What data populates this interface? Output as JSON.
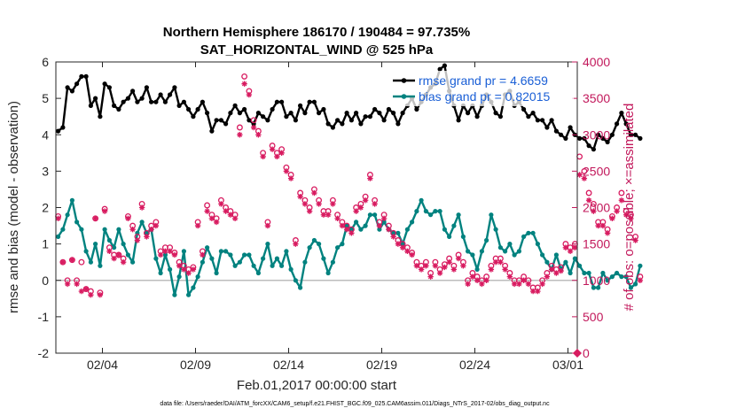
{
  "chart_data": {
    "type": "line",
    "title": "Northern Hemisphere 186170 / 190484 = 97.735%",
    "subtitle": "SAT_HORIZONTAL_WIND @ 525 hPa",
    "xlabel": "Feb.01,2017 00:00:00 start",
    "ylabel": "rmse and bias (model - observation)",
    "ylabel_right": "# of obs: o=possible; ×=assimilated",
    "footnote": "data file: /Users/raeder/DAI/ATM_forcXX/CAM6_setup/f.e21.FHIST_BGC.f09_025.CAM6assim.011/Diags_NTrS_2017-02/obs_diag_output.nc",
    "xlim": [
      0.5,
      28.5
    ],
    "ylim": [
      -2,
      6
    ],
    "ylim_right": [
      0,
      4000
    ],
    "x_ticks": [
      3,
      8,
      13,
      18,
      23,
      28
    ],
    "x_tick_labels": [
      "02/04",
      "02/09",
      "02/14",
      "02/19",
      "02/24",
      "03/01"
    ],
    "y_ticks": [
      -2,
      -1,
      0,
      1,
      2,
      3,
      4,
      5,
      6
    ],
    "y_tick_labels": [
      "-2",
      "-1",
      "0",
      "1",
      "2",
      "3",
      "4",
      "5",
      "6"
    ],
    "y_ticks_right": [
      0,
      500,
      1000,
      1500,
      2000,
      2500,
      3000,
      3500,
      4000
    ],
    "y_tick_labels_right": [
      "0",
      "500",
      "1000",
      "1500",
      "2000",
      "2500",
      "3000",
      "3500",
      "4000"
    ],
    "legend_position": "top-right",
    "zero_line": 0,
    "series": [
      {
        "name": "rmse grand pr = 4.6659",
        "axis": "left",
        "color": "#000000",
        "step": 0.25,
        "x0": 0.625,
        "values": [
          4.1,
          4.2,
          5.3,
          5.2,
          5.4,
          5.6,
          5.6,
          4.8,
          5.0,
          4.5,
          5.4,
          5.3,
          4.8,
          4.7,
          4.9,
          5.0,
          5.2,
          4.9,
          5.0,
          5.3,
          4.9,
          4.9,
          5.1,
          4.9,
          5.1,
          5.3,
          4.8,
          4.9,
          4.7,
          4.5,
          4.7,
          4.9,
          4.6,
          4.1,
          4.4,
          4.4,
          4.3,
          4.6,
          4.8,
          4.6,
          4.7,
          4.4,
          4.3,
          4.6,
          4.5,
          4.4,
          4.7,
          4.9,
          4.9,
          4.5,
          4.6,
          4.4,
          4.8,
          4.6,
          4.9,
          4.9,
          4.6,
          4.7,
          4.3,
          4.2,
          4.4,
          4.3,
          4.6,
          4.4,
          4.6,
          4.3,
          4.5,
          4.5,
          4.7,
          4.6,
          4.4,
          4.7,
          4.6,
          4.3,
          4.6,
          4.8,
          5.0,
          4.7,
          4.9,
          5.1,
          5.3,
          5.4,
          5.8,
          5.9,
          5.2,
          4.8,
          4.4,
          4.8,
          4.6,
          4.8,
          4.5,
          4.8,
          5.1,
          4.9,
          4.6,
          4.5,
          5.1,
          5.2,
          4.8,
          4.9,
          4.7,
          4.5,
          4.6,
          4.4,
          4.4,
          4.2,
          4.4,
          4.1,
          4.0,
          3.9,
          4.2,
          4.0,
          3.9,
          3.9,
          3.7,
          3.6,
          4.0,
          3.9,
          3.8,
          4.0,
          4.3,
          4.6,
          4.3,
          4.0,
          4.0,
          3.9
        ]
      },
      {
        "name": "bias grand pr = 0.82015",
        "axis": "left",
        "color": "#00827f",
        "step": 0.25,
        "x0": 0.625,
        "values": [
          1.2,
          1.4,
          1.8,
          2.2,
          1.6,
          1.4,
          0.8,
          0.5,
          1.0,
          0.4,
          1.4,
          1.1,
          0.9,
          1.4,
          1.0,
          0.7,
          0.5,
          1.3,
          1.6,
          1.3,
          1.4,
          0.6,
          0.2,
          0.7,
          0.3,
          -0.4,
          0.1,
          0.8,
          -0.4,
          -0.2,
          0.1,
          0.5,
          0.9,
          0.6,
          0.2,
          0.8,
          0.8,
          0.7,
          0.4,
          0.5,
          0.7,
          0.7,
          0.4,
          0.2,
          0.6,
          1.0,
          0.4,
          0.6,
          0.4,
          0.8,
          0.3,
          0.0,
          -0.2,
          0.5,
          0.9,
          1.1,
          1.0,
          0.6,
          0.2,
          0.5,
          0.9,
          1.0,
          1.5,
          1.4,
          1.6,
          1.4,
          1.5,
          1.8,
          1.8,
          1.4,
          1.6,
          1.4,
          1.3,
          1.3,
          1.0,
          1.4,
          1.6,
          1.9,
          2.2,
          1.9,
          1.8,
          1.9,
          1.9,
          1.4,
          1.2,
          1.5,
          1.8,
          1.2,
          0.8,
          0.7,
          0.3,
          0.8,
          1.1,
          1.8,
          1.4,
          0.9,
          0.8,
          1.0,
          0.7,
          0.8,
          1.2,
          1.3,
          1.3,
          1.0,
          0.7,
          0.5,
          0.3,
          0.7,
          0.3,
          0.5,
          0.2,
          0.6,
          0.4,
          0.2,
          0.2,
          -0.2,
          -0.2,
          0.2,
          0.0,
          0.1,
          0.2,
          0.1,
          0.1,
          -0.2,
          -0.1,
          0.4
        ]
      },
      {
        "name": "",
        "axis": "right",
        "marker": "circle",
        "color": "#d81b60",
        "step": 0.25,
        "x0": 0.625,
        "values": [
          1880,
          1250,
          1000,
          1280,
          1000,
          1250,
          880,
          850,
          1850,
          830,
          1980,
          1450,
          1350,
          1350,
          1300,
          1880,
          1750,
          1600,
          2050,
          1650,
          1750,
          1800,
          1400,
          1450,
          1450,
          1380,
          1250,
          1200,
          1150,
          1180,
          1800,
          1400,
          2030,
          1900,
          1850,
          2100,
          2000,
          1950,
          1900,
          3100,
          3800,
          3600,
          3200,
          3050,
          2750,
          1800,
          2850,
          2750,
          2800,
          2550,
          2450,
          1550,
          2200,
          2100,
          2000,
          2250,
          2100,
          1950,
          1950,
          2100,
          1900,
          1800,
          1750,
          1700,
          2000,
          2050,
          2150,
          2450,
          2100,
          1800,
          1900,
          1750,
          1650,
          1550,
          1500,
          1450,
          1380,
          1250,
          1200,
          1250,
          1100,
          1250,
          1150,
          1220,
          1300,
          1200,
          1350,
          1250,
          1000,
          1100,
          1050,
          1000,
          1050,
          1200,
          1300,
          1300,
          1200,
          1100,
          1000,
          1000,
          1050,
          1000,
          900,
          900,
          1000,
          1100,
          1200,
          1150,
          1180,
          1500,
          1450,
          1500,
          2700,
          2500,
          2200,
          2050,
          1800,
          1800,
          1700,
          1880,
          2000,
          2200,
          1950,
          1900,
          1600,
          1050
        ]
      },
      {
        "name": "",
        "axis": "right",
        "marker": "asterisk",
        "color": "#d81b60",
        "step": 0.25,
        "x0": 0.625,
        "values": [
          1850,
          1250,
          950,
          1280,
          950,
          850,
          880,
          800,
          1850,
          800,
          1950,
          1400,
          1300,
          1350,
          1250,
          1850,
          1700,
          1550,
          2000,
          1600,
          1700,
          1750,
          1350,
          1400,
          1400,
          1350,
          1200,
          1150,
          1100,
          1150,
          1750,
          1350,
          1950,
          1850,
          1800,
          2050,
          1950,
          1900,
          1850,
          3000,
          3700,
          3550,
          3100,
          3000,
          2700,
          1750,
          2800,
          2700,
          2750,
          2500,
          2400,
          1500,
          2150,
          2050,
          1950,
          2200,
          2050,
          1900,
          1900,
          2050,
          1850,
          1750,
          1700,
          1650,
          1950,
          2000,
          2100,
          2400,
          2050,
          1750,
          1850,
          1700,
          1600,
          1500,
          1450,
          1400,
          1350,
          1200,
          1150,
          1200,
          1050,
          1200,
          1100,
          1180,
          1250,
          1150,
          1300,
          1200,
          950,
          1050,
          1000,
          950,
          1000,
          1150,
          1250,
          1250,
          1150,
          1050,
          950,
          950,
          1000,
          950,
          850,
          850,
          950,
          1050,
          1150,
          1100,
          1130,
          1450,
          1400,
          1450,
          2450,
          2400,
          2100,
          1950,
          1750,
          1750,
          1650,
          1850,
          1950,
          2100,
          1900,
          1850,
          1550,
          1000
        ]
      }
    ]
  }
}
